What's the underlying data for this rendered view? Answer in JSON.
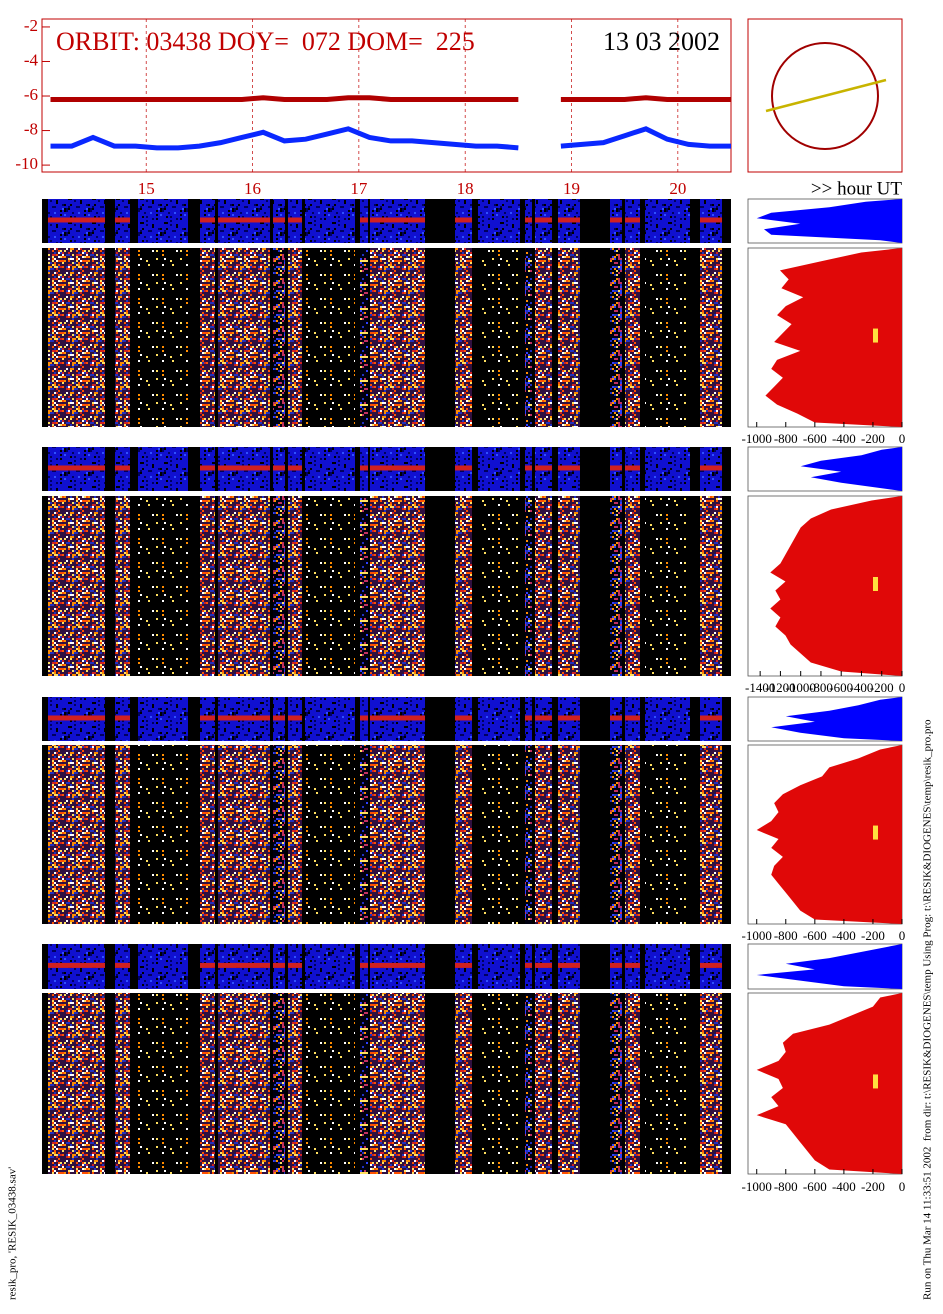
{
  "chart_data": [
    {
      "type": "line",
      "title": "ORBIT: 03438 DOY=  072 DOM=  225",
      "date": "13 03 2002",
      "xlabel": ">> hour UT",
      "xlim": [
        14.02,
        20.5
      ],
      "xticks": [
        15,
        16,
        17,
        18,
        19,
        20
      ],
      "ylim": [
        -10.4,
        -1.54
      ],
      "yticks": [
        -2,
        -4,
        -6,
        -8,
        -10
      ],
      "grid": true,
      "x": [
        14.1,
        14.3,
        14.5,
        14.7,
        14.9,
        15.1,
        15.3,
        15.5,
        15.7,
        15.9,
        16.1,
        16.3,
        16.5,
        16.7,
        16.9,
        17.1,
        17.3,
        17.5,
        17.7,
        17.9,
        18.1,
        18.3,
        18.5,
        18.7,
        18.9,
        19.1,
        19.3,
        19.5,
        19.7,
        19.9,
        20.1,
        20.3,
        20.5
      ],
      "series": [
        {
          "color": "#b00000",
          "values": [
            -6.2,
            -6.2,
            -6.2,
            -6.2,
            -6.2,
            -6.2,
            -6.2,
            -6.2,
            -6.2,
            -6.2,
            -6.1,
            -6.2,
            -6.2,
            -6.2,
            -6.1,
            -6.1,
            -6.2,
            -6.2,
            -6.2,
            -6.2,
            -6.2,
            -6.2,
            -6.2,
            null,
            -6.2,
            -6.2,
            -6.2,
            -6.2,
            -6.1,
            -6.2,
            -6.2,
            -6.2,
            -6.2
          ]
        },
        {
          "color": "#0a28ff",
          "values": [
            -8.9,
            -8.9,
            -8.4,
            -8.9,
            -8.9,
            -9.0,
            -9.0,
            -8.9,
            -8.7,
            -8.4,
            -8.1,
            -8.6,
            -8.5,
            -8.2,
            -7.9,
            -8.4,
            -8.6,
            -8.6,
            -8.7,
            -8.8,
            -8.9,
            -8.9,
            -9.0,
            null,
            -8.9,
            -8.8,
            -8.7,
            -8.3,
            -7.9,
            -8.5,
            -8.8,
            -8.9,
            -8.9
          ]
        }
      ]
    },
    {
      "type": "area",
      "xlim": [
        -1060,
        0
      ],
      "xticks": [
        -1000,
        -800,
        -600,
        -400,
        -200,
        0
      ],
      "series": [
        {
          "color": "#0000ff",
          "values": [
            -250,
            -500,
            -900,
            -1000,
            -700,
            -950,
            -900,
            -150
          ]
        },
        {
          "color": "#e00808",
          "values": [
            -280,
            -560,
            -840,
            -780,
            -830,
            -680,
            -800,
            -860,
            -760,
            -820,
            -880,
            -700,
            -860,
            -900,
            -820,
            -880,
            -940,
            -860,
            -720,
            -600
          ]
        }
      ]
    },
    {
      "type": "area",
      "xlim": [
        -1520,
        0
      ],
      "xticks": [
        -1400,
        -1200,
        -1000,
        -800,
        -600,
        -400,
        -200,
        0
      ],
      "series": [
        {
          "color": "#0000ff",
          "values": [
            -200,
            -400,
            -800,
            -1000,
            -600,
            -900,
            -600,
            -200
          ]
        },
        {
          "color": "#e00808",
          "values": [
            -300,
            -700,
            -900,
            -1000,
            -1050,
            -1100,
            -1150,
            -1200,
            -1300,
            -1150,
            -1250,
            -1200,
            -1300,
            -1200,
            -1250,
            -1150,
            -1100,
            -1000,
            -900,
            -600
          ]
        }
      ]
    },
    {
      "type": "area",
      "xlim": [
        -1060,
        0
      ],
      "xticks": [
        -1000,
        -800,
        -600,
        -400,
        -200,
        0
      ],
      "series": [
        {
          "color": "#0000ff",
          "values": [
            -150,
            -300,
            -500,
            -800,
            -600,
            -900,
            -700,
            -400
          ]
        },
        {
          "color": "#e00808",
          "values": [
            -150,
            -300,
            -500,
            -550,
            -700,
            -820,
            -880,
            -850,
            -900,
            -1000,
            -850,
            -900,
            -820,
            -880,
            -900,
            -850,
            -800,
            -750,
            -700,
            -600
          ]
        }
      ]
    },
    {
      "type": "area",
      "xlim": [
        -1060,
        0
      ],
      "xticks": [
        -1000,
        -800,
        -600,
        -400,
        -200,
        0
      ],
      "series": [
        {
          "color": "#0000ff",
          "values": [
            -100,
            -300,
            -500,
            -800,
            -600,
            -1000,
            -700,
            -400
          ]
        },
        {
          "color": "#e00808",
          "values": [
            -150,
            -200,
            -350,
            -500,
            -750,
            -820,
            -800,
            -850,
            -1000,
            -850,
            -820,
            -900,
            -850,
            -1000,
            -800,
            -750,
            -700,
            -650,
            -600,
            -500
          ]
        }
      ]
    }
  ],
  "notes": {
    "left": "resik_pro, 'RESIK_03438.sav'",
    "right": "Run on Thu Mar 14 11:33:51 2002  from dir: t:\\RESIK&DIOGENES\\temp Using Prog: t:\\RESIK&DIOGENES\\temp\\resik_pro.pro"
  }
}
